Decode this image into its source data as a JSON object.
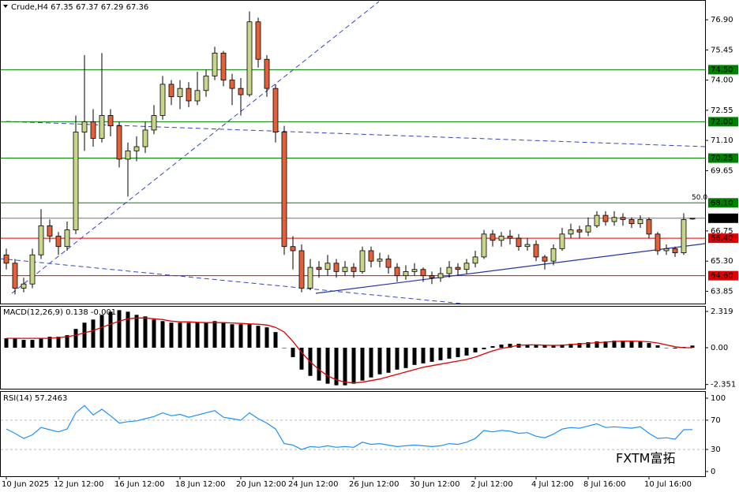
{
  "watermark": "FXTM富拓",
  "chart_data": [
    {
      "type": "candlestick",
      "title": "Crude,H4 67.35 67.37 67.29 67.36",
      "categories": [
        "10 Jun 2025",
        null,
        null,
        null,
        null,
        null,
        "12 Jun 12:00",
        null,
        null,
        null,
        null,
        null,
        null,
        "16 Jun 12:00",
        null,
        null,
        null,
        null,
        null,
        null,
        "18 Jun 12:00",
        null,
        null,
        null,
        null,
        null,
        null,
        "20 Jun 12:00",
        null,
        null,
        null,
        null,
        null,
        "24 Jun 12:00",
        null,
        null,
        null,
        null,
        null,
        null,
        "26 Jun 12:00",
        null,
        null,
        null,
        null,
        null,
        null,
        "30 Jun 12:00",
        null,
        null,
        null,
        null,
        null,
        null,
        "2 Jul 12:00",
        null,
        null,
        null,
        null,
        null,
        null,
        "4 Jul 12:00",
        null,
        null,
        null,
        null,
        null,
        "8 Jul 16:00",
        null,
        null,
        null,
        null,
        null,
        null,
        "10 Jul 16:00",
        null,
        null,
        null,
        null,
        null
      ],
      "open": [
        65.6,
        65.2,
        64.0,
        64.2,
        65.6,
        67.0,
        66.5,
        66.0,
        66.8,
        71.5,
        72.0,
        71.2,
        72.3,
        71.8,
        70.2,
        70.6,
        70.8,
        71.6,
        72.3,
        73.8,
        73.2,
        73.6,
        73.0,
        73.5,
        74.2,
        75.3,
        74.0,
        73.6,
        73.3,
        76.8,
        75.0,
        73.6,
        71.5,
        66.0,
        65.8,
        64.0,
        65.0,
        64.9,
        65.2,
        64.8,
        65.0,
        64.8,
        65.8,
        65.3,
        65.4,
        65.0,
        64.6,
        64.8,
        64.9,
        64.6,
        64.5,
        64.7,
        65.0,
        64.9,
        65.2,
        65.5,
        66.6,
        66.3,
        66.5,
        66.4,
        66.0,
        66.1,
        65.5,
        65.3,
        65.9,
        66.6,
        66.8,
        66.7,
        67.0,
        67.5,
        67.2,
        67.4,
        67.3,
        67.1,
        67.3,
        66.6,
        65.8,
        65.9,
        65.7,
        67.35
      ],
      "high": [
        65.9,
        65.4,
        64.5,
        65.9,
        67.8,
        67.3,
        66.7,
        67.2,
        72.3,
        75.2,
        72.6,
        75.3,
        72.6,
        72.0,
        71.0,
        71.3,
        72.0,
        72.8,
        74.2,
        74.0,
        74.0,
        73.9,
        74.4,
        74.5,
        75.6,
        75.4,
        74.3,
        74.1,
        77.3,
        77.0,
        75.2,
        73.8,
        71.8,
        66.5,
        66.1,
        65.4,
        65.3,
        65.6,
        65.4,
        65.3,
        65.2,
        66.0,
        66.0,
        65.7,
        65.6,
        65.2,
        65.1,
        65.2,
        65.0,
        64.8,
        65.0,
        65.3,
        65.2,
        65.4,
        65.8,
        66.8,
        66.8,
        66.7,
        66.8,
        66.6,
        66.4,
        66.3,
        65.6,
        66.1,
        66.9,
        67.1,
        67.0,
        67.4,
        67.7,
        67.7,
        67.7,
        67.6,
        67.4,
        67.5,
        67.4,
        66.7,
        66.1,
        66.0,
        67.6,
        67.37
      ],
      "low": [
        64.9,
        63.7,
        63.8,
        64.0,
        65.4,
        66.2,
        65.6,
        65.8,
        66.6,
        70.6,
        70.8,
        71.0,
        71.3,
        69.8,
        68.4,
        70.1,
        70.5,
        71.4,
        72.1,
        72.8,
        72.6,
        72.7,
        72.8,
        73.2,
        74.0,
        73.7,
        72.8,
        72.3,
        73.2,
        74.6,
        73.2,
        71.0,
        65.6,
        64.9,
        63.8,
        63.9,
        64.5,
        64.6,
        64.5,
        64.6,
        64.5,
        64.7,
        65.0,
        65.0,
        64.7,
        64.3,
        64.4,
        64.6,
        64.3,
        64.2,
        64.3,
        64.5,
        64.6,
        64.7,
        65.0,
        65.4,
        66.0,
        66.0,
        66.1,
        65.8,
        65.8,
        65.3,
        64.9,
        65.1,
        65.8,
        66.4,
        66.4,
        66.5,
        66.9,
        67.0,
        67.0,
        67.0,
        66.9,
        66.9,
        66.4,
        65.6,
        65.6,
        65.5,
        65.6,
        67.29
      ],
      "close": [
        65.2,
        64.0,
        64.2,
        65.6,
        67.0,
        66.5,
        66.0,
        66.8,
        71.5,
        72.0,
        71.2,
        72.3,
        71.8,
        70.2,
        70.6,
        70.8,
        71.6,
        72.3,
        73.8,
        73.2,
        73.6,
        73.0,
        73.5,
        74.2,
        75.3,
        74.0,
        73.6,
        73.3,
        76.8,
        75.0,
        73.6,
        71.5,
        66.0,
        65.8,
        64.0,
        65.0,
        64.9,
        65.2,
        64.8,
        65.0,
        64.8,
        65.8,
        65.3,
        65.4,
        65.0,
        64.6,
        64.8,
        64.9,
        64.6,
        64.5,
        64.7,
        65.0,
        64.9,
        65.2,
        65.5,
        66.6,
        66.3,
        66.5,
        66.4,
        66.0,
        66.1,
        65.5,
        65.3,
        65.9,
        66.6,
        66.8,
        66.7,
        67.0,
        67.5,
        67.2,
        67.4,
        67.3,
        67.1,
        67.3,
        66.6,
        65.8,
        65.9,
        65.7,
        67.3,
        67.36
      ],
      "up_color": "#c8d68a",
      "down_color": "#e2603a",
      "ylim": [
        63.26,
        77.85
      ],
      "yticks": [
        {
          "value": 76.9,
          "label": "76.90"
        },
        75.45,
        {
          "value": 74.0,
          "label": "74.00"
        },
        72.55,
        {
          "value": 71.1,
          "label": "71.10"
        },
        69.65,
        66.75,
        {
          "value": 65.3,
          "label": "65.30"
        },
        63.85
      ],
      "levels": [
        {
          "value": 74.5,
          "label": "74.50",
          "color": "#008000"
        },
        {
          "value": 72.0,
          "label": "72.00",
          "color": "#008000"
        },
        {
          "value": 70.25,
          "label": "70.25",
          "color": "#008000"
        },
        {
          "value": 68.1,
          "label": "68.10",
          "color": "#008000"
        },
        {
          "value": 67.36,
          "label": "67.36",
          "color": "#000000"
        },
        {
          "value": 66.4,
          "label": "66.40",
          "color": "#e00000"
        },
        {
          "value": 64.6,
          "label": "64.60",
          "color": "#e00000"
        }
      ],
      "fib_label": "50.0"
    },
    {
      "type": "macd",
      "title": "MACD(12,26,9) 0.138 -0.001",
      "values": [
        0.6,
        0.6,
        0.5,
        0.5,
        0.6,
        0.7,
        0.7,
        0.8,
        1.2,
        1.6,
        1.8,
        2.1,
        2.3,
        2.4,
        2.3,
        2.1,
        2.0,
        1.8,
        1.7,
        1.6,
        1.6,
        1.6,
        1.6,
        1.6,
        1.7,
        1.6,
        1.5,
        1.5,
        1.5,
        1.4,
        1.3,
        1.0,
        0.0,
        -0.6,
        -1.4,
        -1.8,
        -2.1,
        -2.3,
        -2.4,
        -2.4,
        -2.3,
        -2.1,
        -1.9,
        -1.7,
        -1.6,
        -1.4,
        -1.3,
        -1.1,
        -1.0,
        -0.9,
        -0.8,
        -0.7,
        -0.6,
        -0.5,
        -0.3,
        -0.1,
        0.1,
        0.2,
        0.25,
        0.25,
        0.2,
        0.2,
        0.15,
        0.15,
        0.2,
        0.25,
        0.3,
        0.35,
        0.4,
        0.4,
        0.45,
        0.45,
        0.4,
        0.4,
        0.3,
        0.15,
        0.0,
        -0.05,
        0.05,
        0.138
      ],
      "signal": [
        0.6,
        0.6,
        0.6,
        0.6,
        0.6,
        0.6,
        0.65,
        0.7,
        0.8,
        0.95,
        1.1,
        1.3,
        1.5,
        1.7,
        1.85,
        1.9,
        1.9,
        1.85,
        1.8,
        1.7,
        1.65,
        1.65,
        1.62,
        1.6,
        1.6,
        1.6,
        1.58,
        1.55,
        1.52,
        1.5,
        1.45,
        1.3,
        1.0,
        0.4,
        -0.3,
        -0.9,
        -1.4,
        -1.8,
        -2.05,
        -2.2,
        -2.25,
        -2.2,
        -2.1,
        -2.0,
        -1.85,
        -1.7,
        -1.55,
        -1.4,
        -1.25,
        -1.15,
        -1.05,
        -0.95,
        -0.85,
        -0.75,
        -0.6,
        -0.4,
        -0.2,
        -0.05,
        0.05,
        0.15,
        0.18,
        0.18,
        0.16,
        0.15,
        0.16,
        0.2,
        0.24,
        0.28,
        0.32,
        0.36,
        0.4,
        0.42,
        0.42,
        0.41,
        0.38,
        0.3,
        0.18,
        0.06,
        0.0,
        -0.001
      ],
      "color": "#000000",
      "signal_color": "#e00000",
      "ylim": [
        -2.62,
        2.67
      ],
      "yticks": [
        2.319,
        {
          "value": 0,
          "label": "0.00"
        },
        -2.351
      ]
    },
    {
      "type": "line",
      "title": "RSI(14) 57.2463",
      "values": [
        58,
        52,
        45,
        50,
        60,
        57,
        54,
        58,
        80,
        90,
        77,
        85,
        76,
        66,
        68,
        69,
        72,
        75,
        80,
        76,
        78,
        74,
        77,
        80,
        83,
        74,
        72,
        70,
        80,
        72,
        66,
        58,
        38,
        36,
        30,
        34,
        33,
        35,
        33,
        34,
        33,
        40,
        37,
        38,
        36,
        34,
        35,
        36,
        35,
        34,
        35,
        38,
        37,
        40,
        45,
        56,
        54,
        56,
        55,
        52,
        53,
        48,
        46,
        51,
        58,
        60,
        59,
        62,
        65,
        60,
        61,
        60,
        59,
        61,
        52,
        45,
        46,
        44,
        57,
        57.2463
      ],
      "color": "#1e90ff",
      "ylim": [
        -6.5,
        109.7
      ],
      "yticks": [
        100,
        70,
        30,
        0
      ],
      "levels": [
        70,
        30
      ]
    }
  ]
}
